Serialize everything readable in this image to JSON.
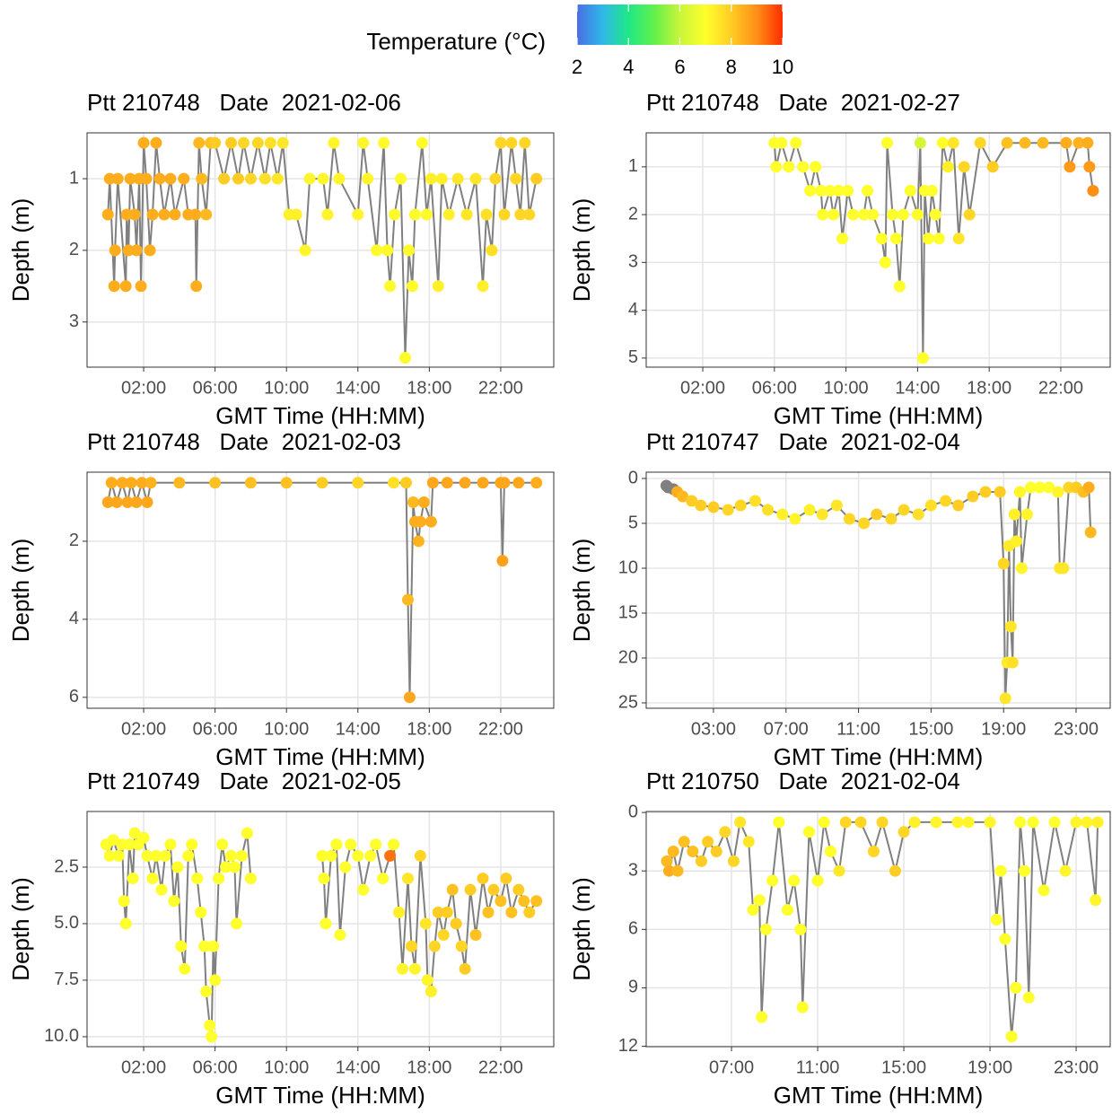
{
  "legend": {
    "title": "Temperature (°C)",
    "lim": [
      2,
      10
    ],
    "ticks": [
      2,
      4,
      6,
      8,
      10
    ],
    "colors": [
      "#4a6fe3",
      "#2fb8e8",
      "#1ee887",
      "#63f04b",
      "#c8f53a",
      "#ffff2b",
      "#ffcc24",
      "#ff8e16",
      "#ff2d00"
    ],
    "na_color": "#808080"
  },
  "chart_data": [
    {
      "type": "scatter",
      "title": "Ptt 210748   Date  2021-02-06",
      "xlabel": "GMT Time (HH:MM)",
      "ylabel": "Depth (m)",
      "line_color": "#808080",
      "grid": true,
      "y_reversed": true,
      "xlim": [
        -1.17,
        24.97
      ],
      "ylim": [
        0.36,
        3.63
      ],
      "yticks": [
        1,
        2,
        3
      ],
      "xticks": [
        {
          "value": 2,
          "label": "02:00"
        },
        {
          "value": 6,
          "label": "06:00"
        },
        {
          "value": 10,
          "label": "10:00"
        },
        {
          "value": 14,
          "label": "14:00"
        },
        {
          "value": 18,
          "label": "18:00"
        },
        {
          "value": 22,
          "label": "22:00"
        }
      ],
      "x": [
        0,
        0.1,
        0.35,
        0.4,
        0.55,
        1,
        1.05,
        1.15,
        1.25,
        1.5,
        1.6,
        1.75,
        1.85,
        2,
        2.15,
        2.35,
        2.5,
        2.7,
        2.9,
        3.15,
        3.5,
        3.75,
        4.25,
        4.5,
        4.9,
        4.95,
        5.1,
        5.25,
        5.5,
        5.75,
        6,
        6.5,
        6.9,
        7.3,
        7.6,
        8,
        8.4,
        8.8,
        9.1,
        9.5,
        9.8,
        10.15,
        10.55,
        11.05,
        11.3,
        12.05,
        12.3,
        12.65,
        12.95,
        14,
        14.3,
        14.55,
        15.05,
        15.45,
        15.65,
        15.8,
        16.05,
        16.4,
        16.65,
        16.85,
        17.05,
        17.2,
        17.6,
        17.85,
        18.1,
        18.5,
        18.7,
        19.1,
        19.6,
        20.1,
        20.6,
        21,
        21.2,
        21.5,
        21.7,
        22,
        22.2,
        22.6,
        22.85,
        23.1,
        23.35,
        23.6,
        24
      ],
      "values": [
        1.5,
        1,
        2.5,
        2,
        1,
        2.5,
        1.5,
        2,
        1,
        1.5,
        2,
        1,
        2.5,
        0.5,
        1,
        2,
        1.5,
        0.5,
        1,
        1.5,
        1,
        1.5,
        1,
        1.5,
        1.5,
        2.5,
        0.5,
        1,
        1.5,
        0.5,
        0.5,
        1,
        0.5,
        1,
        0.5,
        1,
        0.5,
        1,
        0.5,
        1,
        0.5,
        1.5,
        1.5,
        2,
        1,
        1,
        1.5,
        0.5,
        1,
        1.5,
        0.5,
        1,
        2,
        0.5,
        2,
        2.5,
        1.5,
        1,
        3.5,
        2,
        2.5,
        1.5,
        0.5,
        1.5,
        1,
        2.5,
        1,
        1.5,
        1,
        1.5,
        1,
        2.5,
        1.5,
        2,
        1,
        0.5,
        1.5,
        0.5,
        1,
        1.5,
        0.5,
        1.5,
        1
      ],
      "temperature": [
        8.5,
        8.5,
        8.5,
        8.5,
        8.5,
        8.5,
        8.5,
        8.5,
        8.5,
        8.5,
        8.5,
        8.5,
        8.5,
        8.5,
        8.5,
        8.5,
        8.5,
        8.5,
        8.5,
        8.5,
        8.5,
        8.5,
        8.5,
        8.5,
        8.5,
        8.5,
        8.3,
        8.3,
        8.3,
        8.2,
        8,
        8,
        8,
        8,
        7.8,
        7.8,
        7.8,
        7.6,
        7.6,
        7.5,
        7.5,
        7.3,
        7.3,
        7.2,
        7.2,
        7.2,
        7.2,
        7.2,
        7.2,
        7.2,
        7.2,
        7.2,
        7.1,
        7.1,
        7.1,
        7.1,
        7.1,
        7.1,
        7.1,
        7.1,
        7.1,
        7.1,
        7.1,
        7.1,
        7.3,
        7.3,
        7.3,
        7.3,
        7.5,
        7.5,
        7.5,
        7.3,
        7.6,
        7.6,
        7.8,
        7.8,
        7.8,
        7.8,
        7.8,
        7.8,
        7.8,
        7.8,
        8
      ]
    },
    {
      "type": "scatter",
      "title": "Ptt 210748   Date  2021-02-27",
      "xlabel": "GMT Time (HH:MM)",
      "ylabel": "Depth (m)",
      "line_color": "#808080",
      "grid": true,
      "y_reversed": true,
      "xlim": [
        -1.16,
        24.76
      ],
      "ylim": [
        0.29,
        5.19
      ],
      "yticks": [
        1,
        2,
        3,
        4,
        5
      ],
      "xticks": [
        {
          "value": 2,
          "label": "02:00"
        },
        {
          "value": 6,
          "label": "06:00"
        },
        {
          "value": 10,
          "label": "10:00"
        },
        {
          "value": 14,
          "label": "14:00"
        },
        {
          "value": 18,
          "label": "18:00"
        },
        {
          "value": 22,
          "label": "22:00"
        }
      ],
      "x": [
        6,
        6.1,
        6.4,
        6.8,
        7.2,
        7.6,
        8,
        8.3,
        8.6,
        8.7,
        9.1,
        9.3,
        9.6,
        9.8,
        10.1,
        10.4,
        11,
        11.2,
        11.5,
        12,
        12.2,
        12.3,
        12.6,
        12.8,
        13,
        13.2,
        13.6,
        14,
        14.15,
        14.3,
        14.4,
        14.6,
        14.8,
        15,
        15.2,
        15.4,
        15.7,
        16,
        16.3,
        16.6,
        16.9,
        17.5,
        18.2,
        19,
        20,
        21,
        22.3,
        22.5,
        23,
        23.5,
        23.6,
        23.8
      ],
      "values": [
        0.5,
        1,
        0.5,
        1,
        0.5,
        1,
        1.5,
        1,
        1.5,
        2,
        1.5,
        2,
        1.5,
        2.5,
        1.5,
        2,
        2,
        1.5,
        2,
        2.5,
        3,
        0.5,
        2,
        2.5,
        3.5,
        2,
        1.5,
        2,
        0.5,
        5,
        1.5,
        2.5,
        1.5,
        2,
        2.5,
        0.5,
        1,
        0.5,
        2.5,
        1,
        2,
        0.5,
        1,
        0.5,
        0.5,
        0.5,
        0.5,
        1,
        0.5,
        0.5,
        1,
        1.5
      ],
      "temperature": [
        7,
        7,
        7,
        7,
        7,
        7,
        7,
        7,
        7,
        7,
        7,
        7,
        7,
        7,
        7,
        7,
        7,
        7,
        7,
        7,
        7,
        7,
        7,
        7,
        7,
        7,
        7,
        7,
        6.2,
        7,
        7,
        7,
        7,
        7,
        7,
        7,
        7.3,
        7.5,
        7.5,
        7.8,
        7.8,
        7.8,
        8,
        8.2,
        8.3,
        8.3,
        8.5,
        8.8,
        8.4,
        8.5,
        8.8,
        9
      ]
    },
    {
      "type": "scatter",
      "title": "Ptt 210748   Date  2021-02-03",
      "xlabel": "GMT Time (HH:MM)",
      "ylabel": "Depth (m)",
      "line_color": "#808080",
      "grid": true,
      "y_reversed": true,
      "xlim": [
        -1.17,
        24.97
      ],
      "ylim": [
        0.23,
        6.28
      ],
      "yticks": [
        2,
        4,
        6
      ],
      "xticks": [
        {
          "value": 2,
          "label": "02:00"
        },
        {
          "value": 6,
          "label": "06:00"
        },
        {
          "value": 10,
          "label": "10:00"
        },
        {
          "value": 14,
          "label": "14:00"
        },
        {
          "value": 18,
          "label": "18:00"
        },
        {
          "value": 22,
          "label": "22:00"
        }
      ],
      "x": [
        0,
        0.2,
        0.5,
        0.8,
        1.1,
        1.3,
        1.6,
        1.9,
        2.2,
        2.4,
        4,
        6,
        8,
        10,
        12,
        14,
        16,
        16.7,
        16.8,
        16.9,
        17.1,
        17.2,
        17.4,
        17.5,
        17.7,
        18.1,
        18.2,
        19,
        20,
        21,
        22,
        22.1,
        22.2,
        23,
        24
      ],
      "values": [
        1,
        0.5,
        1,
        0.5,
        1,
        0.5,
        1,
        0.5,
        1,
        0.5,
        0.5,
        0.5,
        0.5,
        0.5,
        0.5,
        0.5,
        0.5,
        0.5,
        3.5,
        6,
        1,
        1.5,
        2,
        1.5,
        1,
        1.5,
        0.5,
        0.5,
        0.5,
        0.5,
        0.5,
        2.5,
        0.5,
        0.5,
        0.5
      ],
      "temperature": [
        8.6,
        8.5,
        8.6,
        8.5,
        8.6,
        8.5,
        8.6,
        8.5,
        8.6,
        8.4,
        8.3,
        8.2,
        8.2,
        8.2,
        8,
        7.8,
        7.6,
        8,
        8.3,
        8.6,
        8.3,
        8.5,
        8.4,
        8.5,
        8.5,
        8.5,
        8.6,
        8.6,
        8.6,
        8.6,
        8.6,
        8.7,
        8.6,
        8.6,
        8.5
      ]
    },
    {
      "type": "scatter",
      "title": "Ptt 210747   Date  2021-02-04",
      "xlabel": "GMT Time (HH:MM)",
      "ylabel": "Depth (m)",
      "line_color": "#808080",
      "grid": true,
      "y_reversed": true,
      "xlim": [
        -0.71,
        24.88
      ],
      "ylim": [
        -0.7,
        25.6
      ],
      "yticks": [
        0,
        5,
        10,
        15,
        20,
        25
      ],
      "xticks": [
        {
          "value": 3,
          "label": "03:00"
        },
        {
          "value": 7,
          "label": "07:00"
        },
        {
          "value": 11,
          "label": "11:00"
        },
        {
          "value": 15,
          "label": "15:00"
        },
        {
          "value": 19,
          "label": "19:00"
        },
        {
          "value": 23,
          "label": "23:00"
        }
      ],
      "x": [
        0.4,
        0.5,
        0.8,
        1,
        1.3,
        1.8,
        2.3,
        3,
        3.8,
        4.5,
        5.3,
        6,
        6.8,
        7.5,
        8.3,
        9,
        9.8,
        10.5,
        11.3,
        12,
        12.8,
        13.5,
        14.3,
        15,
        15.8,
        16.5,
        17.3,
        18,
        18.8,
        19,
        19.1,
        19.2,
        19.3,
        19.4,
        19.5,
        19.6,
        19.7,
        19.9,
        20,
        20.3,
        20.5,
        21,
        21.5,
        22,
        22.1,
        22.3,
        22.6,
        23,
        23.4,
        23.7,
        23.8
      ],
      "values": [
        0.8,
        1,
        1.2,
        1.5,
        2,
        2.5,
        3,
        3.2,
        3.5,
        3,
        2.5,
        3.5,
        4,
        4.5,
        3.5,
        4,
        3,
        4.5,
        5,
        4,
        4.5,
        3.5,
        4,
        3,
        2.5,
        3,
        2,
        1.5,
        1.5,
        9.5,
        24.5,
        20.5,
        7.5,
        16.5,
        20.5,
        4,
        7,
        1.5,
        10,
        4,
        1,
        1,
        1,
        1.5,
        10,
        10,
        1,
        1,
        1.5,
        1,
        6
      ],
      "temperature": [
        null,
        null,
        null,
        8.5,
        8.3,
        8,
        8,
        8,
        7.8,
        7.8,
        7.6,
        7.6,
        7.3,
        7.2,
        7.3,
        7.5,
        7.5,
        7.8,
        7.8,
        8,
        7.8,
        7.8,
        7.6,
        7.6,
        7.8,
        8,
        8,
        8,
        8,
        7.8,
        7.5,
        7.4,
        7.4,
        7.5,
        7.6,
        7.3,
        7.3,
        7.2,
        7.2,
        7.2,
        7,
        7,
        7,
        7.2,
        7.5,
        7.5,
        7.8,
        8,
        8.2,
        8.5,
        8.3
      ]
    },
    {
      "type": "scatter",
      "title": "Ptt 210749   Date  2021-02-05",
      "xlabel": "GMT Time (HH:MM)",
      "ylabel": "Depth (m)",
      "line_color": "#808080",
      "grid": true,
      "y_reversed": true,
      "xlim": [
        -1.17,
        24.97
      ],
      "ylim": [
        0.04,
        10.44
      ],
      "yticks": [
        2.5,
        {
          "value": 5,
          "label": "5.0"
        },
        7.5,
        {
          "value": 10,
          "label": "10.0"
        }
      ],
      "xticks": [
        {
          "value": 2,
          "label": "02:00"
        },
        {
          "value": 6,
          "label": "06:00"
        },
        {
          "value": 10,
          "label": "10:00"
        },
        {
          "value": 14,
          "label": "14:00"
        },
        {
          "value": 18,
          "label": "18:00"
        },
        {
          "value": 22,
          "label": "22:00"
        }
      ],
      "x": [
        -0.1,
        0.1,
        0.3,
        0.6,
        0.8,
        0.9,
        1,
        1.2,
        1.4,
        1.5,
        1.7,
        2,
        2.2,
        2.5,
        2.7,
        3,
        3.2,
        3.5,
        3.7,
        3.9,
        4.1,
        4.3,
        4.5,
        4.7,
        5,
        5.2,
        5.4,
        5.5,
        5.7,
        5.8,
        5.9,
        6,
        6.2,
        6.4,
        6.6,
        6.9,
        7.1,
        7.2,
        7.5,
        7.8,
        8,
        null,
        12,
        12.1,
        12.2,
        12.5,
        12.8,
        13,
        13.3,
        13.6,
        14,
        14.3,
        14.7,
        15,
        15.4,
        15.8,
        16,
        16.3,
        16.5,
        16.8,
        17,
        17.2,
        17.5,
        17.8,
        17.9,
        18.1,
        18.3,
        18.5,
        18.8,
        19,
        19.3,
        19.5,
        19.8,
        20,
        20.3,
        20.6,
        21,
        21.3,
        21.6,
        22,
        22.3,
        22.6,
        23,
        23.3,
        23.6,
        24
      ],
      "values": [
        1.5,
        2,
        1.3,
        2,
        1.5,
        4,
        5,
        1.5,
        3,
        1,
        1.5,
        1.2,
        2,
        3,
        2,
        3.5,
        2,
        1.5,
        4,
        2.5,
        6,
        7,
        2,
        1.5,
        3,
        4.5,
        6,
        8,
        9.5,
        10,
        6,
        7.5,
        3,
        1.5,
        2.5,
        2,
        2.5,
        5,
        2,
        1,
        3,
        null,
        2,
        3,
        5,
        2,
        1.5,
        5.5,
        2.5,
        1.5,
        2,
        3.5,
        2,
        1.5,
        3,
        2,
        1.5,
        4.5,
        7,
        3,
        6,
        7,
        2,
        5,
        7.5,
        8,
        6,
        4.5,
        5.5,
        4.5,
        3.5,
        5,
        6,
        7,
        3.5,
        5.5,
        3,
        4.5,
        3.5,
        4,
        3,
        4.5,
        3.5,
        4,
        4.5,
        4
      ],
      "temperature": [
        7,
        7,
        7,
        7,
        7,
        7,
        7,
        7,
        7,
        7,
        7,
        7,
        7,
        7,
        7,
        7,
        7,
        7,
        7,
        7,
        7,
        7,
        7,
        7,
        7,
        7,
        7,
        7,
        7,
        7,
        7,
        7,
        7,
        7,
        7,
        7,
        7,
        7,
        7,
        7,
        7,
        null,
        7,
        7,
        7,
        7,
        7,
        7,
        7,
        7,
        7,
        7,
        7,
        7,
        7,
        9.3,
        7,
        7.3,
        7.2,
        7.5,
        7.8,
        7.2,
        7.8,
        7.5,
        7.2,
        7.3,
        7.8,
        8,
        7.8,
        8,
        8.2,
        8,
        7.8,
        8,
        8,
        8.2,
        8,
        8.2,
        8,
        8.2,
        8,
        8.2,
        8,
        8.2,
        8,
        8.2
      ]
    },
    {
      "type": "scatter",
      "title": "Ptt 210750   Date  2021-02-04",
      "xlabel": "GMT Time (HH:MM)",
      "ylabel": "Depth (m)",
      "line_color": "#808080",
      "grid": true,
      "y_reversed": true,
      "xlim": [
        3.04,
        24.58
      ],
      "ylim": [
        -0.05,
        12.02
      ],
      "yticks": [
        0,
        3,
        6,
        9,
        12
      ],
      "xticks": [
        {
          "value": 7,
          "label": "07:00"
        },
        {
          "value": 11,
          "label": "11:00"
        },
        {
          "value": 15,
          "label": "15:00"
        },
        {
          "value": 19,
          "label": "19:00"
        },
        {
          "value": 23,
          "label": "23:00"
        }
      ],
      "x": [
        4,
        4.1,
        4.3,
        4.5,
        4.8,
        5.2,
        5.6,
        5.9,
        6.3,
        6.7,
        7.1,
        7.4,
        7.8,
        8,
        8.3,
        8.4,
        8.6,
        8.9,
        9.2,
        9.6,
        9.9,
        10.2,
        10.3,
        10.6,
        11,
        11.3,
        11.6,
        12,
        12.3,
        13,
        13.6,
        14,
        14.6,
        15,
        15.5,
        16.5,
        17.5,
        18,
        19,
        19.3,
        19.5,
        19.7,
        20,
        20.2,
        20.4,
        20.6,
        20.8,
        21,
        21.5,
        22,
        22.5,
        23,
        23.5,
        23.9,
        24
      ],
      "values": [
        2.5,
        3,
        2,
        3,
        1.5,
        2,
        2.5,
        1.5,
        2,
        1,
        2.5,
        0.5,
        1.5,
        5,
        4.5,
        10.5,
        6,
        3.5,
        0.5,
        5,
        3.5,
        6,
        10,
        1,
        3.5,
        0.5,
        2,
        3,
        0.5,
        0.5,
        2,
        0.5,
        3,
        1,
        0.5,
        0.5,
        0.5,
        0.5,
        0.5,
        5.5,
        3,
        6.5,
        11.5,
        9,
        0.5,
        3,
        9.5,
        0.5,
        4,
        0.5,
        3,
        0.5,
        0.5,
        4.5,
        0.5
      ],
      "temperature": [
        8.3,
        8.5,
        8.3,
        8.3,
        8.2,
        8.2,
        8,
        8,
        8,
        7.8,
        7.8,
        7.5,
        7.5,
        7,
        7,
        7,
        7,
        7,
        7,
        7,
        7,
        7,
        7,
        7,
        7,
        7,
        7,
        7.5,
        7.8,
        7.8,
        7.8,
        7.8,
        8,
        7.8,
        7.3,
        7.2,
        7.2,
        7.2,
        7.2,
        7,
        7,
        7,
        7,
        7,
        7,
        7,
        7,
        7,
        7,
        7,
        7.2,
        7.2,
        7.2,
        7.2,
        7.3
      ]
    }
  ]
}
